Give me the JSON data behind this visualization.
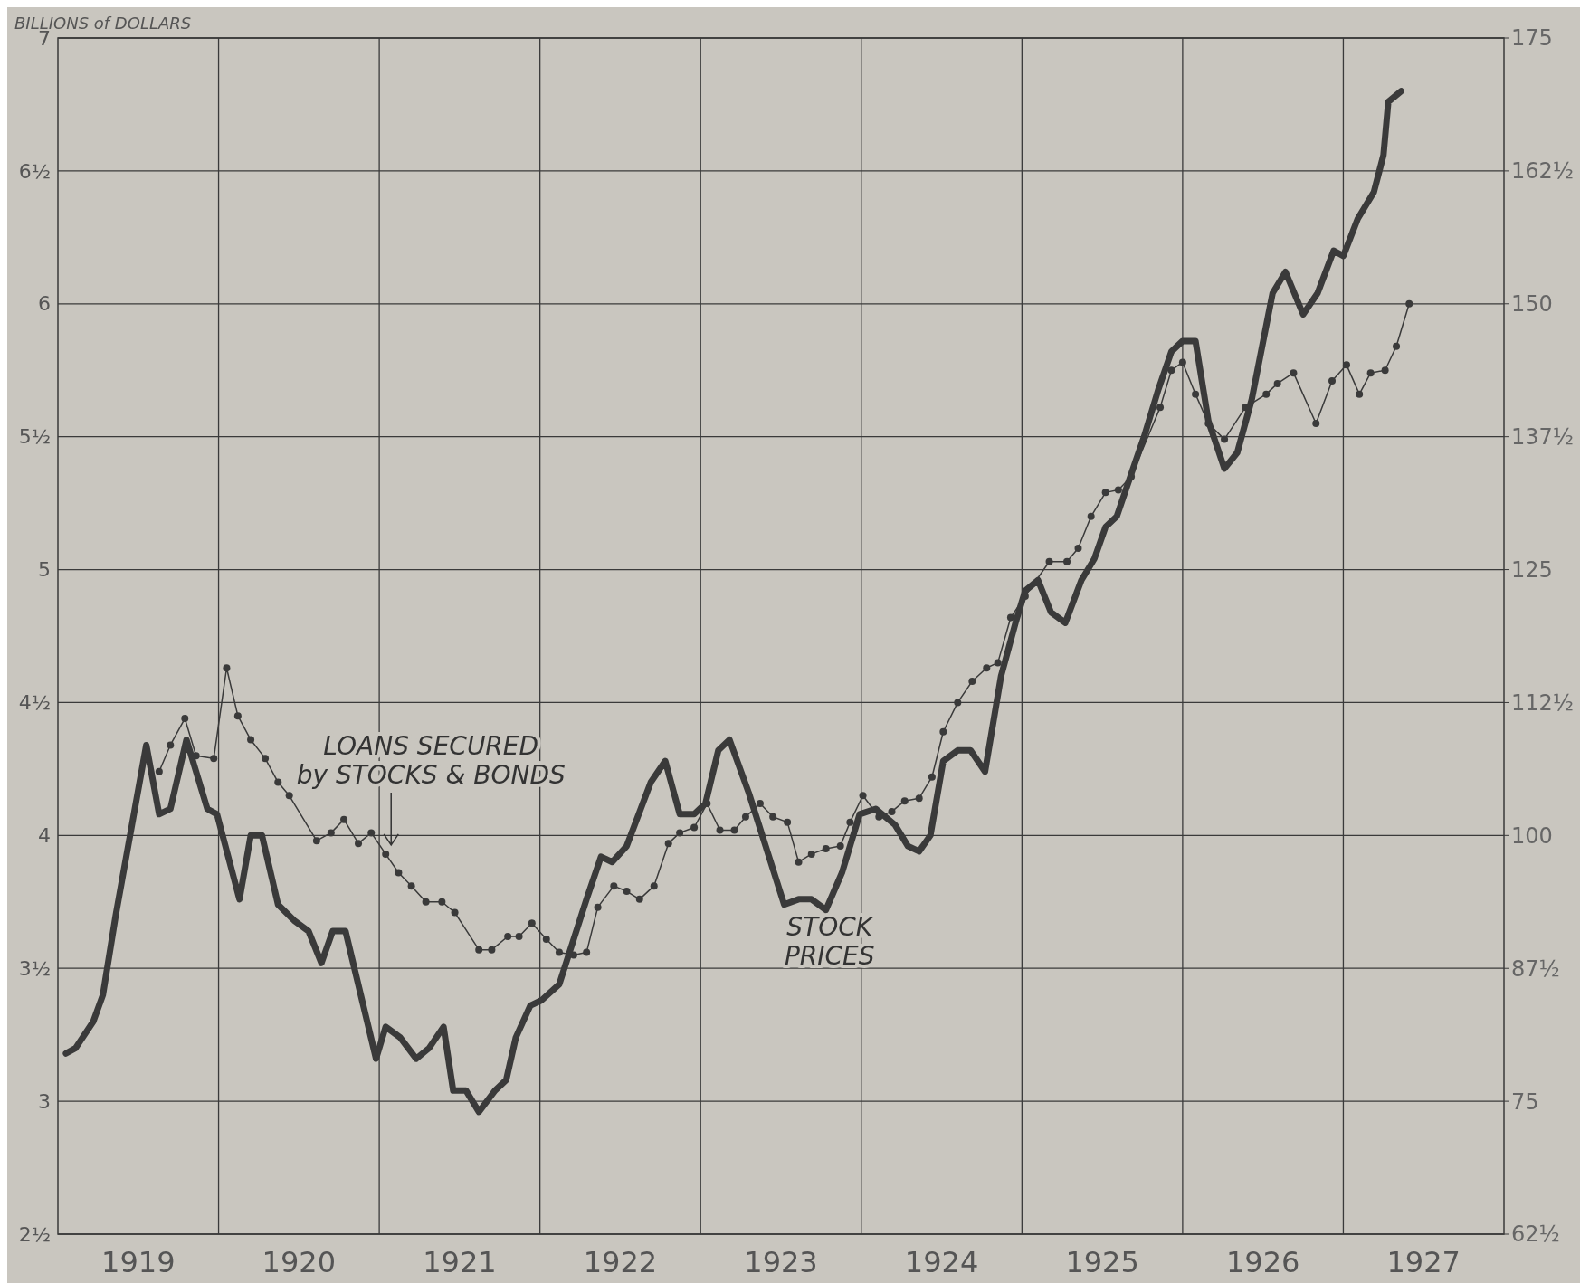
{
  "chart_data": {
    "type": "line",
    "ylabel": "BILLIONS of DOLLARS",
    "xlim": [
      1919,
      1928
    ],
    "xticks": [
      {
        "value": 1919.5,
        "label": "1919"
      },
      {
        "value": 1920,
        "label": null
      },
      {
        "value": 1920.5,
        "label": "1920"
      },
      {
        "value": 1921,
        "label": null
      },
      {
        "value": 1921.5,
        "label": "1921"
      },
      {
        "value": 1922,
        "label": null
      },
      {
        "value": 1922.5,
        "label": "1922"
      },
      {
        "value": 1923,
        "label": null
      },
      {
        "value": 1923.5,
        "label": "1923"
      },
      {
        "value": 1924,
        "label": null
      },
      {
        "value": 1924.5,
        "label": "1924"
      },
      {
        "value": 1925,
        "label": null
      },
      {
        "value": 1925.5,
        "label": "1925"
      },
      {
        "value": 1926,
        "label": null
      },
      {
        "value": 1926.5,
        "label": "1926"
      },
      {
        "value": 1927,
        "label": null
      },
      {
        "value": 1927.5,
        "label": "1927"
      }
    ],
    "ylim": [
      2.5,
      7
    ],
    "yticks": [
      {
        "value": 2.5,
        "label": "2½"
      },
      3,
      {
        "value": 3.5,
        "label": "3½"
      },
      4,
      {
        "value": 4.5,
        "label": "4½"
      },
      5,
      {
        "value": 5.5,
        "label": "5½"
      },
      6,
      {
        "value": 6.5,
        "label": "6½"
      },
      7
    ],
    "y2lim": [
      62.5,
      175
    ],
    "y2ticks": [
      {
        "value": 62.5,
        "label": "62½"
      },
      75,
      {
        "value": 87.5,
        "label": "87½"
      },
      100,
      {
        "value": 112.5,
        "label": "112½"
      },
      125,
      {
        "value": 137.5,
        "label": "137½"
      },
      150,
      {
        "value": 162.5,
        "label": "162½"
      },
      175
    ],
    "grid": true,
    "series": [
      {
        "name": "LOANS SECURED by STOCKS & BONDS",
        "color": "#3a3a3a",
        "marker": "circle",
        "x": [
          1919.63,
          1919.7,
          1919.79,
          1919.86,
          1919.97,
          1920.05,
          1920.12,
          1920.2,
          1920.29,
          1920.37,
          1920.44,
          1920.61,
          1920.7,
          1920.78,
          1920.87,
          1920.95,
          1921.04,
          1921.12,
          1921.2,
          1921.29,
          1921.39,
          1921.47,
          1921.62,
          1921.7,
          1921.8,
          1921.87,
          1921.95,
          1922.04,
          1922.12,
          1922.21,
          1922.29,
          1922.36,
          1922.46,
          1922.54,
          1922.62,
          1922.71,
          1922.8,
          1922.87,
          1922.96,
          1923.04,
          1923.12,
          1923.21,
          1923.28,
          1923.37,
          1923.45,
          1923.54,
          1923.61,
          1923.69,
          1923.78,
          1923.87,
          1923.93,
          1924.01,
          1924.11,
          1924.19,
          1924.27,
          1924.36,
          1924.44,
          1924.51,
          1924.6,
          1924.69,
          1924.78,
          1924.85,
          1924.93,
          1925.02,
          1925.17,
          1925.28,
          1925.35,
          1925.43,
          1925.52,
          1925.6,
          1925.68,
          1925.86,
          1925.93,
          1926.0,
          1926.08,
          1926.16,
          1926.26,
          1926.39,
          1926.52,
          1926.59,
          1926.69,
          1926.83,
          1926.93,
          1927.02,
          1927.1,
          1927.17,
          1927.26,
          1927.33,
          1927.41
        ],
        "values": [
          4.24,
          4.34,
          4.44,
          4.3,
          4.29,
          4.63,
          4.45,
          4.36,
          4.29,
          4.2,
          4.15,
          3.98,
          4.01,
          4.06,
          3.97,
          4.01,
          3.93,
          3.86,
          3.81,
          3.75,
          3.75,
          3.71,
          3.57,
          3.57,
          3.62,
          3.62,
          3.67,
          3.61,
          3.56,
          3.55,
          3.56,
          3.73,
          3.81,
          3.79,
          3.76,
          3.81,
          3.97,
          4.01,
          4.03,
          4.12,
          4.02,
          4.02,
          4.07,
          4.12,
          4.07,
          4.05,
          3.9,
          3.93,
          3.95,
          3.96,
          4.05,
          4.15,
          4.07,
          4.09,
          4.13,
          4.14,
          4.22,
          4.39,
          4.5,
          4.58,
          4.63,
          4.65,
          4.82,
          4.9,
          5.03,
          5.03,
          5.08,
          5.2,
          5.29,
          5.3,
          5.35,
          5.61,
          5.75,
          5.78,
          5.66,
          5.55,
          5.49,
          5.61,
          5.66,
          5.7,
          5.74,
          5.55,
          5.71,
          5.77,
          5.66,
          5.74,
          5.75,
          5.84,
          6.0
        ]
      },
      {
        "name": "STOCK PRICES",
        "color": "#3a3a3a",
        "marker": "none",
        "axis": "y2",
        "x": [
          1919.05,
          1919.11,
          1919.22,
          1919.28,
          1919.36,
          1919.55,
          1919.63,
          1919.7,
          1919.8,
          1919.93,
          1919.99,
          1920.13,
          1920.2,
          1920.27,
          1920.37,
          1920.47,
          1920.56,
          1920.64,
          1920.71,
          1920.79,
          1920.98,
          1921.04,
          1921.13,
          1921.23,
          1921.31,
          1921.4,
          1921.46,
          1921.54,
          1921.62,
          1921.72,
          1921.79,
          1921.85,
          1921.94,
          1922.01,
          1922.12,
          1922.29,
          1922.38,
          1922.45,
          1922.54,
          1922.69,
          1922.78,
          1922.87,
          1922.96,
          1923.03,
          1923.11,
          1923.18,
          1923.3,
          1923.52,
          1923.61,
          1923.69,
          1923.78,
          1923.88,
          1923.99,
          1924.09,
          1924.21,
          1924.29,
          1924.36,
          1924.43,
          1924.51,
          1924.6,
          1924.68,
          1924.77,
          1924.87,
          1924.96,
          1925.02,
          1925.1,
          1925.18,
          1925.27,
          1925.37,
          1925.45,
          1925.52,
          1925.59,
          1925.68,
          1925.76,
          1925.85,
          1925.93,
          1926.0,
          1926.08,
          1926.16,
          1926.26,
          1926.34,
          1926.43,
          1926.56,
          1926.64,
          1926.75,
          1926.84,
          1926.94,
          1927.0,
          1927.09,
          1927.19,
          1927.25,
          1927.28,
          1927.36
        ],
        "values": [
          79.5,
          80,
          82.5,
          85,
          92.5,
          108.5,
          102,
          102.5,
          109,
          102.5,
          102,
          94,
          100,
          100,
          93.5,
          92,
          91,
          88,
          91,
          91,
          79,
          82,
          81,
          79,
          80,
          82,
          76,
          76,
          74,
          76,
          77,
          81,
          84,
          84.5,
          86,
          94,
          98,
          97.5,
          99,
          105,
          107,
          102,
          102,
          103,
          108,
          109,
          104,
          93.5,
          94,
          94,
          93,
          96.5,
          102,
          102.5,
          101,
          99,
          98.5,
          100,
          107,
          108,
          108,
          106,
          115,
          120,
          123,
          124,
          121,
          120,
          124,
          126,
          129,
          130,
          134,
          137.5,
          142,
          145.5,
          146.5,
          146.5,
          139,
          134.5,
          136,
          141,
          151,
          153,
          149,
          151,
          155,
          154.5,
          158,
          160.5,
          164,
          169,
          170
        ]
      }
    ]
  }
}
